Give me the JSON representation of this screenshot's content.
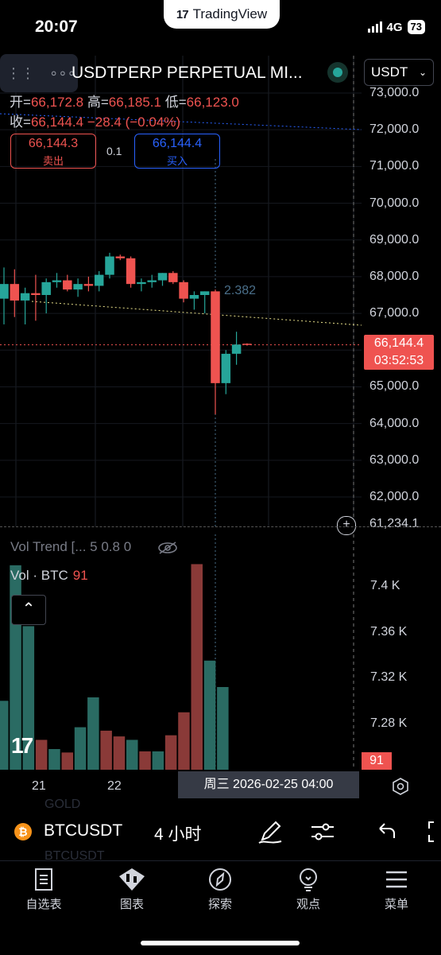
{
  "status_bar": {
    "time": "20:07",
    "app_brand": "TradingView",
    "network": "4G",
    "battery": "73"
  },
  "header": {
    "symbol_title": "USDTPERP PERPETUAL MI...",
    "currency": "USDT",
    "ohlc": {
      "open_label": "开=",
      "open": "66,172.8",
      "high_label": "高=",
      "high": "66,185.1",
      "low_label": "低=",
      "low": "66,123.0",
      "close_label": "收=",
      "close": "66,144.4",
      "change": "−28.4 (−0.04%)"
    },
    "sell": {
      "price": "66,144.3",
      "label": "卖出"
    },
    "spread": "0.1",
    "buy": {
      "price": "66,144.4",
      "label": "买入"
    }
  },
  "price_axis": {
    "ticks": [
      "73,000.0",
      "72,000.0",
      "71,000.0",
      "70,000.0",
      "69,000.0",
      "68,000.0",
      "67,000.0",
      "65,000.0",
      "64,000.0",
      "63,000.0",
      "62,000.0"
    ],
    "current_price": "66,144.4",
    "countdown": "03:52:53",
    "bottom_value": "61,234.1",
    "marker_label": "2.382"
  },
  "volume": {
    "trend_legend": "Vol Trend [... 5 0.8 0",
    "label": "Vol · BTC",
    "value": "91",
    "ticks": [
      "7.4 K",
      "7.36 K",
      "7.32 K",
      "7.28 K"
    ]
  },
  "time_axis": {
    "ticks": [
      "21",
      "22"
    ],
    "crosshair_label": "周三 2026-02-25   04:00"
  },
  "symbol_bar": {
    "symbol": "BTCUSDT",
    "timeframe": "4 小时",
    "ghost_top": "GOLD",
    "ghost_bottom": "BTCUSDT"
  },
  "tabs": [
    {
      "label": "自选表",
      "icon": "watchlist-icon"
    },
    {
      "label": "图表",
      "icon": "chart-icon"
    },
    {
      "label": "探索",
      "icon": "compass-icon"
    },
    {
      "label": "观点",
      "icon": "lightbulb-icon"
    },
    {
      "label": "菜单",
      "icon": "menu-icon"
    }
  ],
  "colors": {
    "up": "#26a69a",
    "down": "#ef5350",
    "accent": "#2962ff",
    "background": "#000000"
  },
  "chart_data": {
    "type": "candlestick",
    "candles": [
      {
        "o": 67400,
        "h": 68250,
        "l": 66700,
        "c": 67800
      },
      {
        "o": 67800,
        "h": 68200,
        "l": 66900,
        "c": 67350
      },
      {
        "o": 67350,
        "h": 67700,
        "l": 66700,
        "c": 67550
      },
      {
        "o": 67550,
        "h": 68050,
        "l": 66800,
        "c": 67500
      },
      {
        "o": 67500,
        "h": 67950,
        "l": 67000,
        "c": 67850
      },
      {
        "o": 67850,
        "h": 68100,
        "l": 67700,
        "c": 67900
      },
      {
        "o": 67900,
        "h": 68050,
        "l": 67600,
        "c": 67650
      },
      {
        "o": 67650,
        "h": 67950,
        "l": 67450,
        "c": 67800
      },
      {
        "o": 67800,
        "h": 68000,
        "l": 67600,
        "c": 67750
      },
      {
        "o": 67750,
        "h": 68150,
        "l": 67600,
        "c": 68050
      },
      {
        "o": 68050,
        "h": 68650,
        "l": 67950,
        "c": 68550
      },
      {
        "o": 68550,
        "h": 68600,
        "l": 68450,
        "c": 68500
      },
      {
        "o": 68500,
        "h": 68550,
        "l": 67700,
        "c": 67800
      },
      {
        "o": 67800,
        "h": 67950,
        "l": 67600,
        "c": 67850
      },
      {
        "o": 67850,
        "h": 68050,
        "l": 67700,
        "c": 67900
      },
      {
        "o": 67900,
        "h": 68100,
        "l": 67750,
        "c": 68100
      },
      {
        "o": 68100,
        "h": 68150,
        "l": 67800,
        "c": 67850
      },
      {
        "o": 67850,
        "h": 67900,
        "l": 67300,
        "c": 67400
      },
      {
        "o": 67400,
        "h": 67600,
        "l": 67100,
        "c": 67500
      },
      {
        "o": 67500,
        "h": 67600,
        "l": 67000,
        "c": 67600
      },
      {
        "o": 67600,
        "h": 67650,
        "l": 64250,
        "c": 65100
      },
      {
        "o": 65100,
        "h": 66000,
        "l": 64800,
        "c": 65900
      },
      {
        "o": 65900,
        "h": 66500,
        "l": 65600,
        "c": 66150
      },
      {
        "o": 66172.8,
        "h": 66185.1,
        "l": 66123.0,
        "c": 66144.4
      }
    ],
    "volume": [
      7.3,
      7.418,
      7.365,
      7.266,
      7.258,
      7.255,
      7.277,
      7.303,
      7.274,
      7.269,
      7.266,
      7.256,
      7.256,
      7.27,
      7.29,
      7.419,
      7.335,
      7.312,
      7.24
    ],
    "volume_unit": "K",
    "y_range": [
      61234.1,
      73000
    ],
    "volume_range": [
      7.24,
      7.42
    ]
  }
}
